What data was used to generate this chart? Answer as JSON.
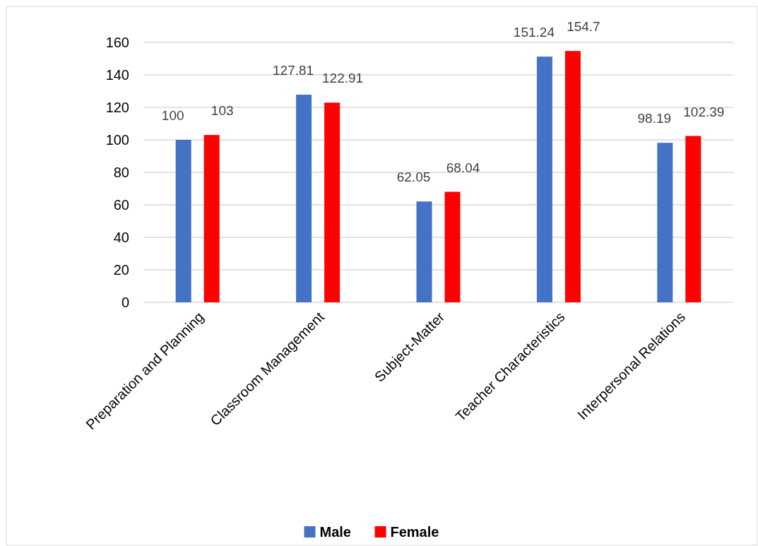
{
  "chart_data": {
    "type": "bar",
    "categories": [
      "Preparation and Planning",
      "Classroom Management",
      "Subject-Matter",
      "Teacher Characteristics",
      "Interpersonal Relations"
    ],
    "series": [
      {
        "name": "Male",
        "color": "#4472c4",
        "values": [
          100,
          127.81,
          62.05,
          151.24,
          98.19
        ]
      },
      {
        "name": "Female",
        "color": "#ff0000",
        "values": [
          103,
          122.91,
          68.04,
          154.7,
          102.39
        ]
      }
    ],
    "ylim": [
      0,
      160
    ],
    "yticks": [
      0,
      20,
      40,
      60,
      80,
      100,
      120,
      140,
      160
    ],
    "grid": "y",
    "legend": "bottom",
    "data_labels": true
  }
}
